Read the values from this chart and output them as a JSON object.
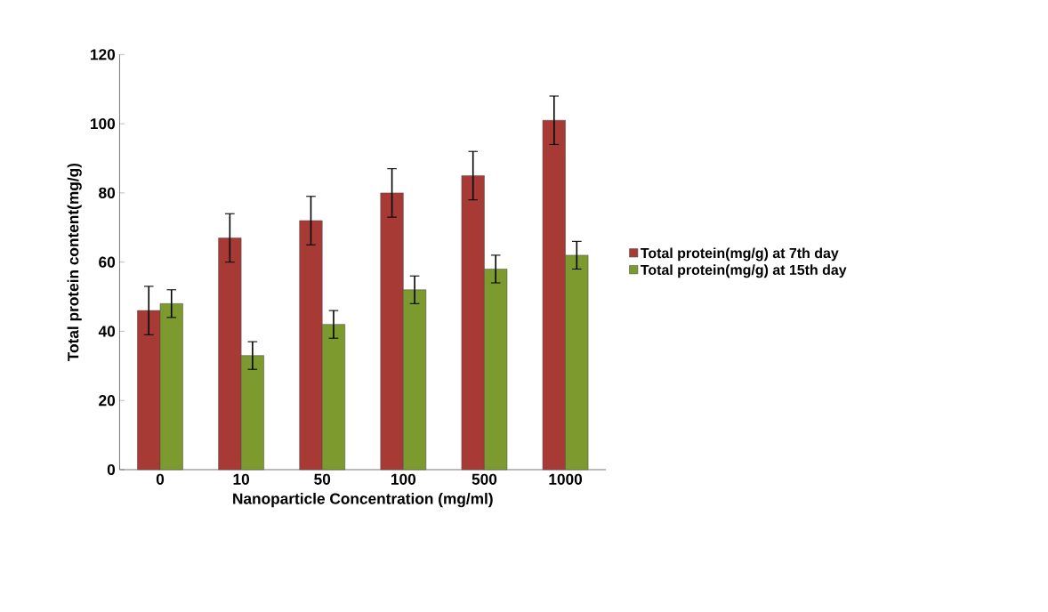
{
  "chart_data": {
    "type": "bar",
    "xlabel": "Nanoparticle Concentration (mg/ml)",
    "ylabel": "Total protein content(mg/g)",
    "categories": [
      "0",
      "10",
      "50",
      "100",
      "500",
      "1000"
    ],
    "series": [
      {
        "name": "Total protein(mg/g) at 7th day",
        "color": "#a83a36",
        "values": [
          46,
          67,
          72,
          80,
          85,
          101
        ],
        "errors": [
          7,
          7,
          7,
          7,
          7,
          7
        ]
      },
      {
        "name": "Total protein(mg/g) at 15th day",
        "color": "#7c9a2e",
        "values": [
          48,
          33,
          42,
          52,
          58,
          62
        ],
        "errors": [
          4,
          4,
          4,
          4,
          4,
          4
        ]
      }
    ],
    "ylim": [
      0,
      120
    ],
    "yticks": [
      0,
      20,
      40,
      60,
      80,
      100,
      120
    ],
    "grid": false,
    "legend": "right"
  }
}
